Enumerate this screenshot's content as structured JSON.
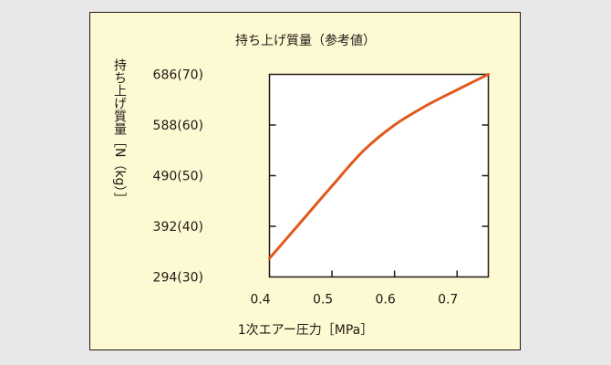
{
  "chart_data": {
    "type": "line",
    "title": "持ち上げ質量（参考値）",
    "xlabel": "1次エアー圧力［MPa］",
    "ylabel": "持ち上げ質量［N（kg）］",
    "xlim": [
      0.4,
      0.75
    ],
    "ylim": [
      294,
      686
    ],
    "x_ticks": [
      0.4,
      0.5,
      0.6,
      0.7
    ],
    "x_tick_labels": [
      "0.4",
      "0.5",
      "0.6",
      "0.7"
    ],
    "y_ticks": [
      294,
      392,
      490,
      588,
      686
    ],
    "y_tick_labels": [
      "294(30)",
      "392(40)",
      "490(50)",
      "588(60)",
      "686(70)"
    ],
    "grid": false,
    "series": [
      {
        "color": "#e05a1e",
        "x": [
          0.4,
          0.45,
          0.5,
          0.55,
          0.6,
          0.65,
          0.7,
          0.75
        ],
        "y": [
          330,
          400,
          470,
          538,
          588,
          625,
          656,
          686
        ]
      }
    ]
  }
}
